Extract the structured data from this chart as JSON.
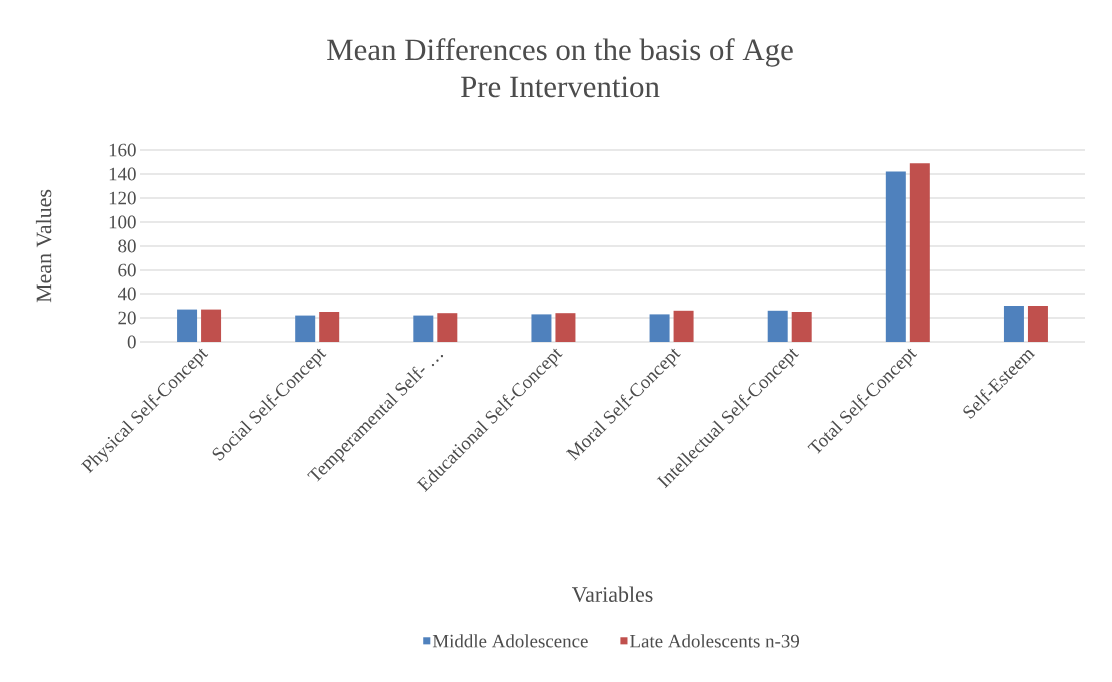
{
  "chart_data": {
    "type": "bar",
    "title": "Mean Differences on the basis of Age",
    "subtitle": "Pre Intervention",
    "xlabel": "Variables",
    "ylabel": "Mean Values",
    "categories": [
      "Physical Self-Concept",
      "Social Self-Concept",
      "Temperamental Self- …",
      "Educational Self-Concept",
      "Moral Self-Concept",
      "Intellectual Self-Concept",
      "Total Self-Concept",
      "Self-Esteem"
    ],
    "series": [
      {
        "name": "Middle Adolescence",
        "color": "#4f81bd",
        "values": [
          27,
          22,
          22,
          23,
          23,
          26,
          142,
          30
        ]
      },
      {
        "name": "Late Adolescents n-39",
        "color": "#c0504d",
        "values": [
          27,
          25,
          24,
          24,
          26,
          25,
          149,
          30
        ]
      }
    ],
    "ylim": [
      0,
      160
    ],
    "yticks": [
      0,
      20,
      40,
      60,
      80,
      100,
      120,
      140,
      160
    ],
    "grid": "y",
    "legend": "bottom"
  }
}
